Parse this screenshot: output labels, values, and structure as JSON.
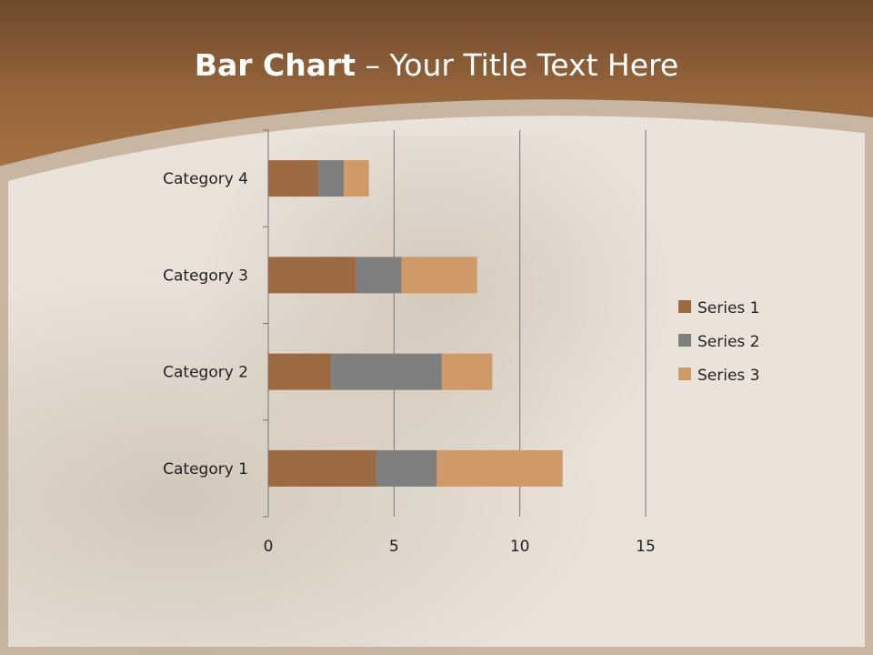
{
  "title": {
    "bold": "Bar Chart",
    "rest": " – Your Title Text Here"
  },
  "chart_data": {
    "type": "bar",
    "orientation": "horizontal",
    "stacked": true,
    "categories": [
      "Category 1",
      "Category 2",
      "Category 3",
      "Category 4"
    ],
    "series": [
      {
        "name": "Series 1",
        "values": [
          4.3,
          2.5,
          3.5,
          2.0
        ],
        "color": "#9c6a42"
      },
      {
        "name": "Series 2",
        "values": [
          2.4,
          4.4,
          1.8,
          1.0
        ],
        "color": "#7f7f7f"
      },
      {
        "name": "Series 3",
        "values": [
          5.0,
          2.0,
          3.0,
          1.0
        ],
        "color": "#cf9a68"
      }
    ],
    "xlim": [
      0,
      15
    ],
    "xticks": [
      "0",
      "5",
      "10",
      "15"
    ],
    "grid": true,
    "legend": "right"
  }
}
